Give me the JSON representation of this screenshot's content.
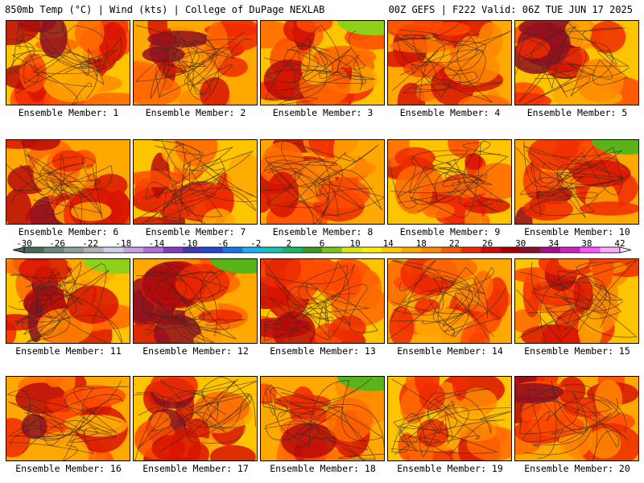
{
  "header": {
    "left": "850mb Temp (°C) | Wind (kts) | College of DuPage NEXLAB",
    "right": "00Z GEFS | F222 Valid: 06Z TUE JUN 17 2025"
  },
  "member_label_prefix": "Ensemble Member: ",
  "members": [
    1,
    2,
    3,
    4,
    5,
    6,
    7,
    8,
    9,
    10,
    11,
    12,
    13,
    14,
    15,
    16,
    17,
    18,
    19,
    20
  ],
  "colorbar": {
    "tick_labels": [
      "-30",
      "-26",
      "-22",
      "-18",
      "-14",
      "-10",
      "-6",
      "-2",
      "2",
      "6",
      "10",
      "14",
      "18",
      "22",
      "26",
      "30",
      "34",
      "38",
      "42"
    ],
    "colors": [
      "#4a6a55",
      "#6f8a78",
      "#8fa097",
      "#b1b4b6",
      "#cfd0e8",
      "#c9a2e3",
      "#b16fd8",
      "#7e3fc2",
      "#4637b5",
      "#2448d0",
      "#1577e6",
      "#18b3ee",
      "#17c3b3",
      "#17b56d",
      "#3a9a22",
      "#82c01a",
      "#d8e414",
      "#ffee00",
      "#ffcc00",
      "#ffa800",
      "#ff8a00",
      "#ff5a00",
      "#f22a00",
      "#d40a0a",
      "#a80000",
      "#8a1030",
      "#a3128a",
      "#d21fc2",
      "#ff55ff",
      "#ffaaff"
    ],
    "min": -30,
    "max": 42,
    "step": 2.4
  }
}
